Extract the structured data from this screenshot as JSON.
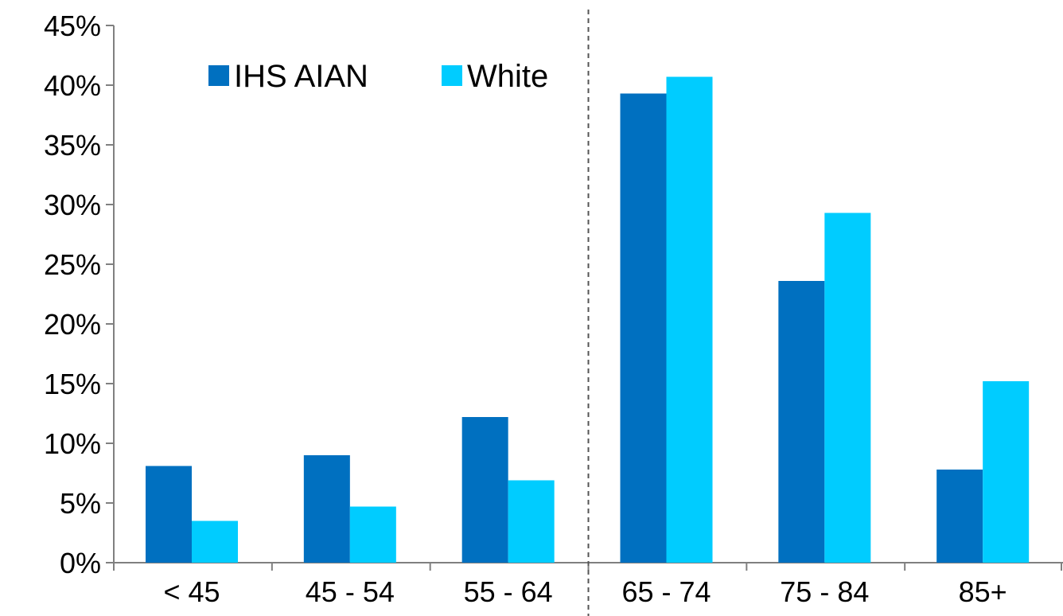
{
  "chart_data": {
    "type": "bar",
    "categories": [
      "< 45",
      "45 - 54",
      "55 - 64",
      "65 - 74",
      "75 - 84",
      "85+"
    ],
    "series": [
      {
        "name": "IHS AIAN",
        "color": "#0070C0",
        "values": [
          8.1,
          9.0,
          12.2,
          39.3,
          23.6,
          7.8
        ]
      },
      {
        "name": "White",
        "color": "#00CCFF",
        "values": [
          3.5,
          4.7,
          6.9,
          40.7,
          29.3,
          15.2
        ]
      }
    ],
    "ylim": [
      0,
      45
    ],
    "y_ticks": [
      "0%",
      "5%",
      "10%",
      "15%",
      "20%",
      "25%",
      "30%",
      "35%",
      "40%",
      "45%"
    ],
    "y_tick_values": [
      0,
      5,
      10,
      15,
      20,
      25,
      30,
      35,
      40,
      45
    ],
    "title": "",
    "xlabel": "",
    "ylabel": "",
    "legend_position": "top-left",
    "divider_after_category_index": 2,
    "grid": false
  }
}
